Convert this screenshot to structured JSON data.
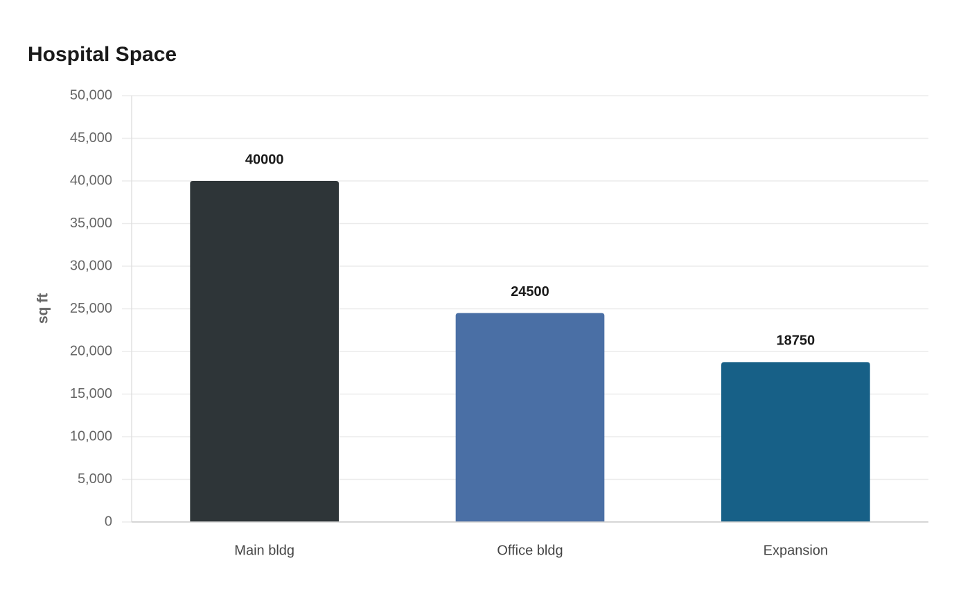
{
  "chart_data": {
    "type": "bar",
    "title": "Hospital Space",
    "y_label": "sq ft",
    "categories": [
      "Main bldg",
      "Office bldg",
      "Expansion"
    ],
    "values": [
      40000,
      24500,
      18750
    ],
    "colors": [
      "#2e3538",
      "#4a6fa5",
      "#176087"
    ],
    "ylim": [
      0,
      50000
    ],
    "yticks": [
      0,
      {
        "value": 5000,
        "label": "5,000"
      },
      {
        "value": 10000,
        "label": "10,000"
      },
      {
        "value": 15000,
        "label": "15,000"
      },
      {
        "value": 20000,
        "label": "20,000"
      },
      {
        "value": 25000,
        "label": "25,000"
      },
      {
        "value": 30000,
        "label": "30,000"
      },
      {
        "value": 35000,
        "label": "35,000"
      },
      {
        "value": 40000,
        "label": "40,000"
      },
      {
        "value": 45000,
        "label": "45,000"
      },
      {
        "value": 50000,
        "label": "50,000"
      }
    ],
    "grid": true
  }
}
